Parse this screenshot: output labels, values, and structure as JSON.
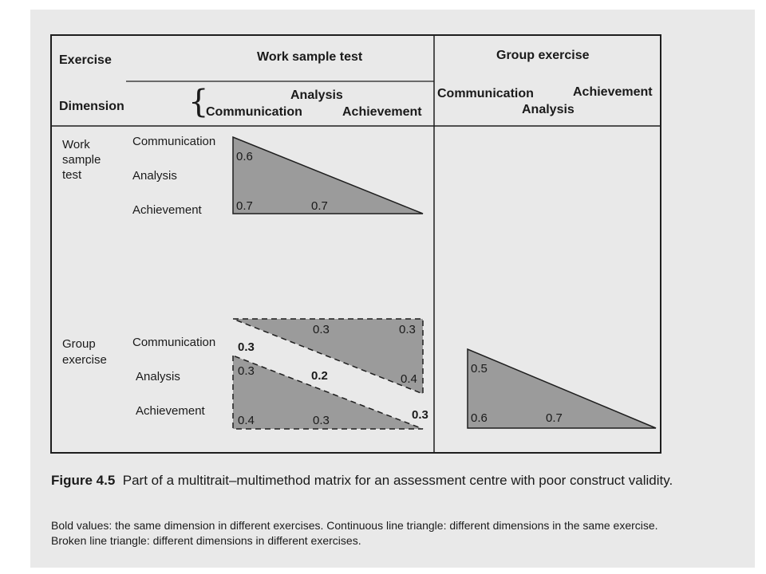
{
  "header": {
    "exercise": "Exercise",
    "dimension": "Dimension",
    "work_sample_test": "Work sample test",
    "group_exercise": "Group exercise",
    "wst_dims": {
      "analysis": "Analysis",
      "communication": "Communication",
      "achievement": "Achievement"
    },
    "ge_dims": {
      "communication": "Communication",
      "achievement": "Achievement",
      "analysis": "Analysis"
    }
  },
  "rows": {
    "work_sample_test": {
      "label_line1": "Work",
      "label_line2": "sample",
      "label_line3": "test",
      "communication": "Communication",
      "analysis": "Analysis",
      "achievement": "Achievement"
    },
    "group_exercise": {
      "label_line1": "Group",
      "label_line2": "exercise",
      "communication": "Communication",
      "analysis": "Analysis",
      "achievement": "Achievement"
    }
  },
  "values": {
    "wst_triangle": {
      "v1": "0.6",
      "v2": "0.7",
      "v3": "0.7"
    },
    "upper_dashed": {
      "v1": "0.3",
      "v2": "0.3",
      "v3": "0.4"
    },
    "diag_bold": {
      "v1": "0.3",
      "v2": "0.2",
      "v3": "0.3"
    },
    "lower_dashed": {
      "v1": "0.3",
      "v2": "0.4",
      "v3": "0.3"
    },
    "ge_triangle": {
      "v1": "0.5",
      "v2": "0.6",
      "v3": "0.7"
    }
  },
  "caption": {
    "figure_label": "Figure 4.5",
    "text": "Part of a multitrait–multimethod matrix for an assessment centre with poor construct validity.",
    "note": "Bold values: the same dimension in different exercises. Continuous line triangle: different dimensions in the same exercise. Broken line triangle: different dimensions in different exercises."
  },
  "colors": {
    "fill": "#9b9b9b",
    "line": "#1e1e1e",
    "paper": "#e9e9e9"
  }
}
